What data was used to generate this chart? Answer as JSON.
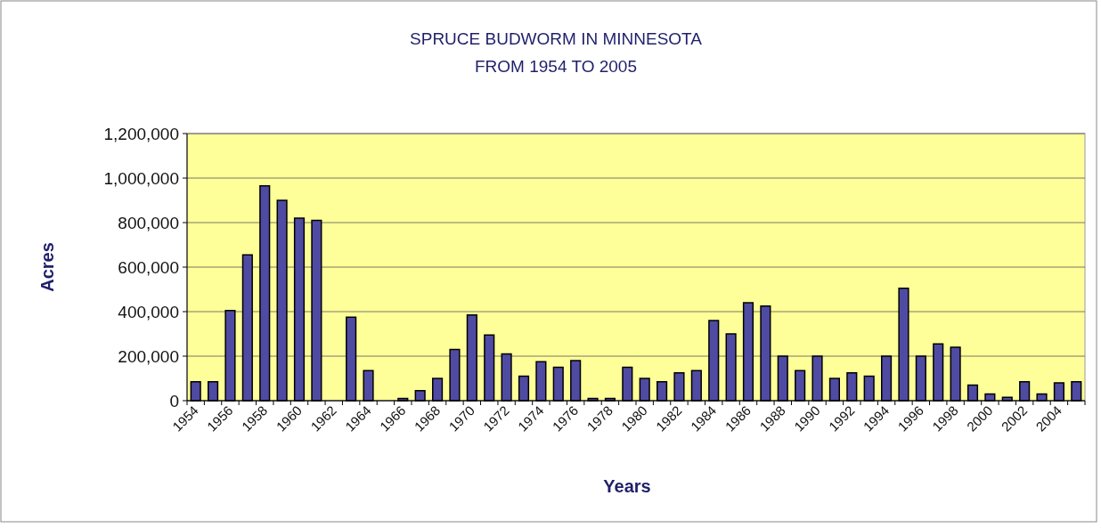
{
  "chart_data": {
    "type": "bar",
    "title": "SPRUCE BUDWORM IN MINNESOTA",
    "subtitle": "FROM 1954 TO 2005",
    "xlabel": "Years",
    "ylabel": "Acres",
    "categories": [
      "1954",
      null,
      "1956",
      null,
      "1958",
      null,
      "1960",
      null,
      "1962",
      null,
      "1964",
      null,
      "1966",
      null,
      "1968",
      null,
      "1970",
      null,
      "1972",
      null,
      "1974",
      null,
      "1976",
      null,
      "1978",
      null,
      "1980",
      null,
      "1982",
      null,
      "1984",
      null,
      "1986",
      null,
      "1988",
      null,
      "1990",
      null,
      "1992",
      null,
      "1994",
      null,
      "1996",
      null,
      "1998",
      null,
      "2000",
      null,
      "2002",
      null,
      "2004",
      null
    ],
    "values": [
      85000,
      85000,
      405000,
      655000,
      965000,
      900000,
      820000,
      810000,
      0,
      375000,
      135000,
      0,
      10000,
      45000,
      100000,
      230000,
      385000,
      295000,
      210000,
      110000,
      175000,
      150000,
      180000,
      10000,
      10000,
      150000,
      100000,
      85000,
      125000,
      135000,
      360000,
      300000,
      440000,
      425000,
      200000,
      135000,
      200000,
      100000,
      125000,
      110000,
      200000,
      505000,
      200000,
      255000,
      240000,
      70000,
      30000,
      15000,
      85000,
      30000,
      80000,
      85000
    ],
    "color": "#4f4ba3",
    "ylim": [
      0,
      1200000
    ],
    "yticks": [
      {
        "value": 0,
        "label": "0"
      },
      {
        "value": 200000,
        "label": "200,000"
      },
      {
        "value": 400000,
        "label": "400,000"
      },
      {
        "value": 600000,
        "label": "600,000"
      },
      {
        "value": 800000,
        "label": "800,000"
      },
      {
        "value": 1000000,
        "label": "1,000,000"
      },
      {
        "value": 1200000,
        "label": "1,200,000"
      }
    ],
    "grid": "y"
  }
}
